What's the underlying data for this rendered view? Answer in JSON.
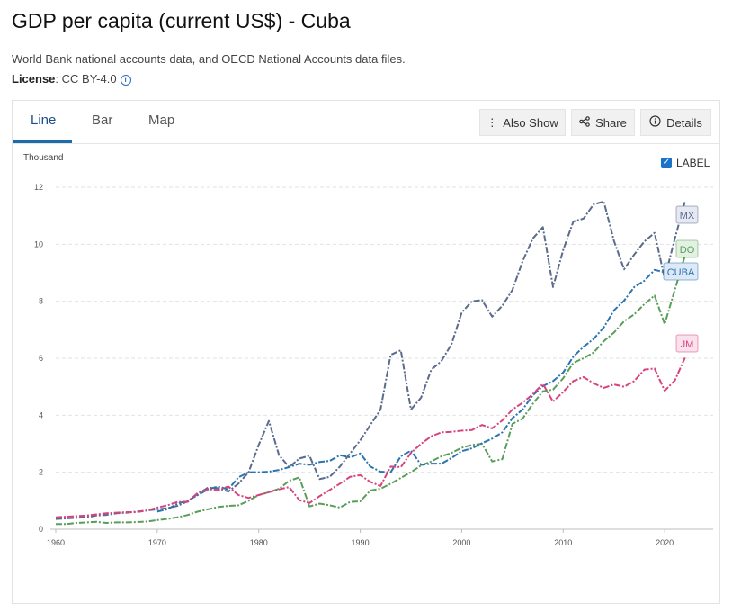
{
  "page": {
    "title": "GDP per capita (current US$) - Cuba",
    "source": "World Bank national accounts data, and OECD National Accounts data files.",
    "license_label": "License",
    "license_value": ": CC BY-4.0"
  },
  "tabs": [
    {
      "label": "Line",
      "active": true
    },
    {
      "label": "Bar",
      "active": false
    },
    {
      "label": "Map",
      "active": false
    }
  ],
  "toolbar": {
    "also_show": "Also Show",
    "share": "Share",
    "details": "Details"
  },
  "label_toggle": {
    "label": "LABEL",
    "checked": true
  },
  "chart_data": {
    "type": "line",
    "ylabel": "Thousand",
    "xlim": [
      1960,
      2023
    ],
    "ylim": [
      0,
      12
    ],
    "x_ticks": [
      1960,
      1970,
      1980,
      1990,
      2000,
      2010,
      2020
    ],
    "y_ticks": [
      0,
      2,
      4,
      6,
      8,
      10,
      12
    ],
    "grid": "horizontal dashed",
    "series": [
      {
        "name": "MX",
        "color": "#5a6b8c",
        "x": [
          1960,
          1961,
          1962,
          1963,
          1964,
          1965,
          1966,
          1967,
          1968,
          1969,
          1970,
          1971,
          1972,
          1973,
          1974,
          1975,
          1976,
          1977,
          1978,
          1979,
          1980,
          1981,
          1982,
          1983,
          1984,
          1985,
          1986,
          1987,
          1988,
          1989,
          1990,
          1991,
          1992,
          1993,
          1994,
          1995,
          1996,
          1997,
          1998,
          1999,
          2000,
          2001,
          2002,
          2003,
          2004,
          2005,
          2006,
          2007,
          2008,
          2009,
          2010,
          2011,
          2012,
          2013,
          2014,
          2015,
          2016,
          2017,
          2018,
          2019,
          2020,
          2021,
          2022
        ],
        "y": [
          0.36,
          0.38,
          0.4,
          0.42,
          0.48,
          0.5,
          0.56,
          0.58,
          0.62,
          0.66,
          0.7,
          0.74,
          0.82,
          0.98,
          1.24,
          1.46,
          1.44,
          1.32,
          1.6,
          2.0,
          2.96,
          3.8,
          2.6,
          2.18,
          2.48,
          2.58,
          1.76,
          1.84,
          2.2,
          2.66,
          3.12,
          3.66,
          4.2,
          6.12,
          6.28,
          4.2,
          4.62,
          5.6,
          5.9,
          6.5,
          7.6,
          8.0,
          8.04,
          7.46,
          7.84,
          8.4,
          9.4,
          10.2,
          10.6,
          8.5,
          9.8,
          10.8,
          10.9,
          11.4,
          11.5,
          10.12,
          9.12,
          9.64,
          10.1,
          10.4,
          8.8,
          10.2,
          11.5
        ]
      },
      {
        "name": "DO",
        "color": "#5a9e5a",
        "x": [
          1960,
          1961,
          1962,
          1963,
          1964,
          1965,
          1966,
          1967,
          1968,
          1969,
          1970,
          1971,
          1972,
          1973,
          1974,
          1975,
          1976,
          1977,
          1978,
          1979,
          1980,
          1981,
          1982,
          1983,
          1984,
          1985,
          1986,
          1987,
          1988,
          1989,
          1990,
          1991,
          1992,
          1993,
          1994,
          1995,
          1996,
          1997,
          1998,
          1999,
          2000,
          2001,
          2002,
          2003,
          2004,
          2005,
          2006,
          2007,
          2008,
          2009,
          2010,
          2011,
          2012,
          2013,
          2014,
          2015,
          2016,
          2017,
          2018,
          2019,
          2020,
          2021,
          2022
        ],
        "y": [
          0.18,
          0.18,
          0.22,
          0.24,
          0.26,
          0.22,
          0.24,
          0.24,
          0.25,
          0.27,
          0.32,
          0.36,
          0.42,
          0.5,
          0.62,
          0.7,
          0.78,
          0.82,
          0.84,
          1.0,
          1.2,
          1.3,
          1.42,
          1.7,
          1.82,
          0.8,
          0.9,
          0.84,
          0.76,
          0.96,
          0.98,
          1.36,
          1.42,
          1.6,
          1.8,
          2.0,
          2.24,
          2.38,
          2.56,
          2.68,
          2.86,
          2.96,
          3.0,
          2.38,
          2.46,
          3.7,
          3.88,
          4.4,
          4.84,
          4.9,
          5.3,
          5.84,
          6.0,
          6.2,
          6.6,
          6.9,
          7.3,
          7.54,
          7.9,
          8.2,
          7.2,
          8.4,
          9.6
        ]
      },
      {
        "name": "CUBA",
        "color": "#2a74b0",
        "x": [
          1970,
          1971,
          1972,
          1973,
          1974,
          1975,
          1976,
          1977,
          1978,
          1979,
          1980,
          1981,
          1982,
          1983,
          1984,
          1985,
          1986,
          1987,
          1988,
          1989,
          1990,
          1991,
          1992,
          1993,
          1994,
          1995,
          1996,
          1997,
          1998,
          1999,
          2000,
          2001,
          2002,
          2003,
          2004,
          2005,
          2006,
          2007,
          2008,
          2009,
          2010,
          2011,
          2012,
          2013,
          2014,
          2015,
          2016,
          2017,
          2018,
          2019,
          2020
        ],
        "y": [
          0.62,
          0.7,
          0.9,
          1.0,
          1.2,
          1.4,
          1.5,
          1.4,
          1.82,
          2.0,
          2.0,
          2.02,
          2.08,
          2.18,
          2.3,
          2.26,
          2.36,
          2.4,
          2.6,
          2.52,
          2.66,
          2.2,
          2.02,
          2.0,
          2.56,
          2.76,
          2.26,
          2.3,
          2.3,
          2.5,
          2.74,
          2.84,
          3.02,
          3.18,
          3.4,
          3.9,
          4.2,
          4.7,
          5.02,
          5.2,
          5.5,
          6.06,
          6.4,
          6.68,
          7.08,
          7.68,
          8.02,
          8.5,
          8.72,
          9.1,
          9.02
        ]
      },
      {
        "name": "JM",
        "color": "#d6447e",
        "x": [
          1960,
          1961,
          1962,
          1963,
          1964,
          1965,
          1966,
          1967,
          1968,
          1969,
          1970,
          1971,
          1972,
          1973,
          1974,
          1975,
          1976,
          1977,
          1978,
          1979,
          1980,
          1981,
          1982,
          1983,
          1984,
          1985,
          1986,
          1987,
          1988,
          1989,
          1990,
          1991,
          1992,
          1993,
          1994,
          1995,
          1996,
          1997,
          1998,
          1999,
          2000,
          2001,
          2002,
          2003,
          2004,
          2005,
          2006,
          2007,
          2008,
          2009,
          2010,
          2011,
          2012,
          2013,
          2014,
          2015,
          2016,
          2017,
          2018,
          2019,
          2020,
          2021,
          2022
        ],
        "y": [
          0.42,
          0.44,
          0.46,
          0.48,
          0.52,
          0.56,
          0.58,
          0.6,
          0.6,
          0.66,
          0.76,
          0.84,
          0.96,
          0.96,
          1.28,
          1.4,
          1.38,
          1.5,
          1.2,
          1.1,
          1.2,
          1.3,
          1.4,
          1.48,
          1.02,
          0.92,
          1.16,
          1.38,
          1.6,
          1.84,
          1.9,
          1.66,
          1.52,
          2.2,
          2.18,
          2.68,
          3.0,
          3.26,
          3.4,
          3.42,
          3.46,
          3.48,
          3.66,
          3.54,
          3.82,
          4.2,
          4.44,
          4.74,
          5.1,
          4.48,
          4.82,
          5.2,
          5.34,
          5.12,
          4.96,
          5.08,
          5.0,
          5.2,
          5.6,
          5.64,
          4.86,
          5.22,
          6.02
        ]
      }
    ]
  }
}
